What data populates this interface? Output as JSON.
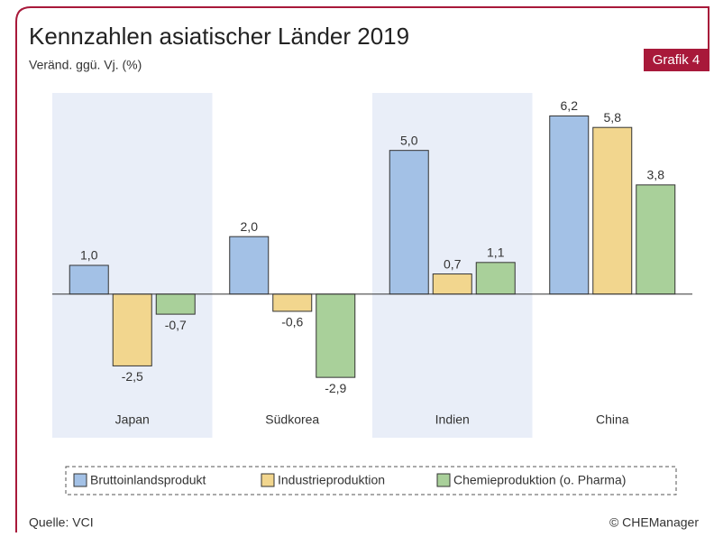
{
  "chart_data": {
    "type": "bar",
    "title": "Kennzahlen asiatischer Länder 2019",
    "subtitle": "Veränd. ggü. Vj. (%)",
    "badge": "Grafik 4",
    "source": "Quelle: VCI",
    "credit": "© CHEManager",
    "categories": [
      "Japan",
      "Südkorea",
      "Indien",
      "China"
    ],
    "series": [
      {
        "name": "Bruttoinlandsprodukt",
        "color": "#a3c1e6",
        "values": [
          1.0,
          2.0,
          5.0,
          6.2
        ],
        "value_labels": [
          "1,0",
          "2,0",
          "5,0",
          "6,2"
        ]
      },
      {
        "name": "Industrieproduktion",
        "color": "#f2d68e",
        "values": [
          -2.5,
          -0.6,
          0.7,
          5.8
        ],
        "value_labels": [
          "-2,5",
          "-0,6",
          "0,7",
          "5,8"
        ]
      },
      {
        "name": "Chemieproduktion (o. Pharma)",
        "color": "#a9d09a",
        "values": [
          -0.7,
          -2.9,
          1.1,
          3.8
        ],
        "value_labels": [
          "-0,7",
          "-2,9",
          "1,1",
          "3,8"
        ]
      }
    ],
    "ylim": [
      -5,
      7
    ]
  }
}
